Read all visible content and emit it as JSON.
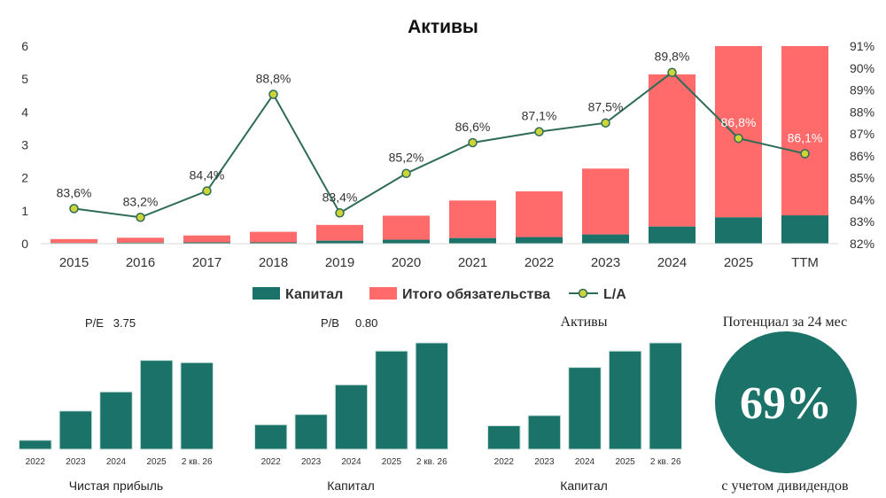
{
  "chart_data": [
    {
      "type": "bar",
      "title": "Активы",
      "categories": [
        "2015",
        "2016",
        "2017",
        "2018",
        "2019",
        "2020",
        "2021",
        "2022",
        "2023",
        "2024",
        "2025",
        "TTM"
      ],
      "series": [
        {
          "name": "Капитал",
          "type": "bar",
          "stack": "assets",
          "color": "#1a7268",
          "values": [
            0.02,
            0.03,
            0.04,
            0.04,
            0.09,
            0.12,
            0.17,
            0.2,
            0.28,
            0.52,
            0.8,
            0.86
          ]
        },
        {
          "name": "Итого обязательства",
          "type": "bar",
          "stack": "assets",
          "color": "#ff6b6b",
          "values": [
            0.12,
            0.15,
            0.21,
            0.32,
            0.48,
            0.73,
            1.14,
            1.39,
            2.0,
            4.62,
            5.5,
            5.5
          ]
        },
        {
          "name": "L/A",
          "type": "line",
          "axis": "right",
          "color": "#2e6b58",
          "marker_color": "#cdd438",
          "values": [
            83.6,
            83.2,
            84.4,
            88.8,
            83.4,
            85.2,
            86.6,
            87.1,
            87.5,
            89.8,
            86.8,
            86.1
          ],
          "labels": [
            "83,6%",
            "83,2%",
            "84,4%",
            "88,8%",
            "83,4%",
            "85,2%",
            "86,6%",
            "87,1%",
            "87,5%",
            "89,8%",
            "86,8%",
            "86,1%"
          ]
        }
      ],
      "ylim": [
        0,
        6
      ],
      "yticks": [
        "0",
        "1",
        "2",
        "3",
        "4",
        "5",
        "6"
      ],
      "y2lim": [
        82,
        91
      ],
      "y2ticks": [
        "82%",
        "83%",
        "84%",
        "85%",
        "86%",
        "87%",
        "88%",
        "89%",
        "90%",
        "91%"
      ],
      "legend": "bottom",
      "grid": false
    },
    {
      "type": "bar",
      "title": "P/E   3.75",
      "caption": "Чистая прибыль",
      "categories": [
        "2022",
        "2023",
        "2024",
        "2025",
        "2 кв. 26"
      ],
      "values": [
        8,
        34,
        51,
        79,
        77
      ],
      "ylim": [
        0,
        100
      ],
      "color": "#1a7268"
    },
    {
      "type": "bar",
      "title": "P/B     0.80",
      "caption": "Капитал",
      "categories": [
        "2022",
        "2023",
        "2024",
        "2025",
        "2 кв. 26"
      ],
      "values": [
        24,
        34,
        63,
        96,
        104
      ],
      "ylim": [
        0,
        110
      ],
      "color": "#1a7268"
    },
    {
      "type": "bar",
      "title": "Активы",
      "caption": "Капитал",
      "categories": [
        "2022",
        "2023",
        "2024",
        "2025",
        "2 кв. 26"
      ],
      "values": [
        23,
        33,
        80,
        96,
        104
      ],
      "ylim": [
        0,
        110
      ],
      "color": "#1a7268"
    }
  ],
  "potential": {
    "title": "Потенциал за 24 мес",
    "value": "69%",
    "caption": "с учетом дивидендов",
    "color": "#1a7268"
  }
}
